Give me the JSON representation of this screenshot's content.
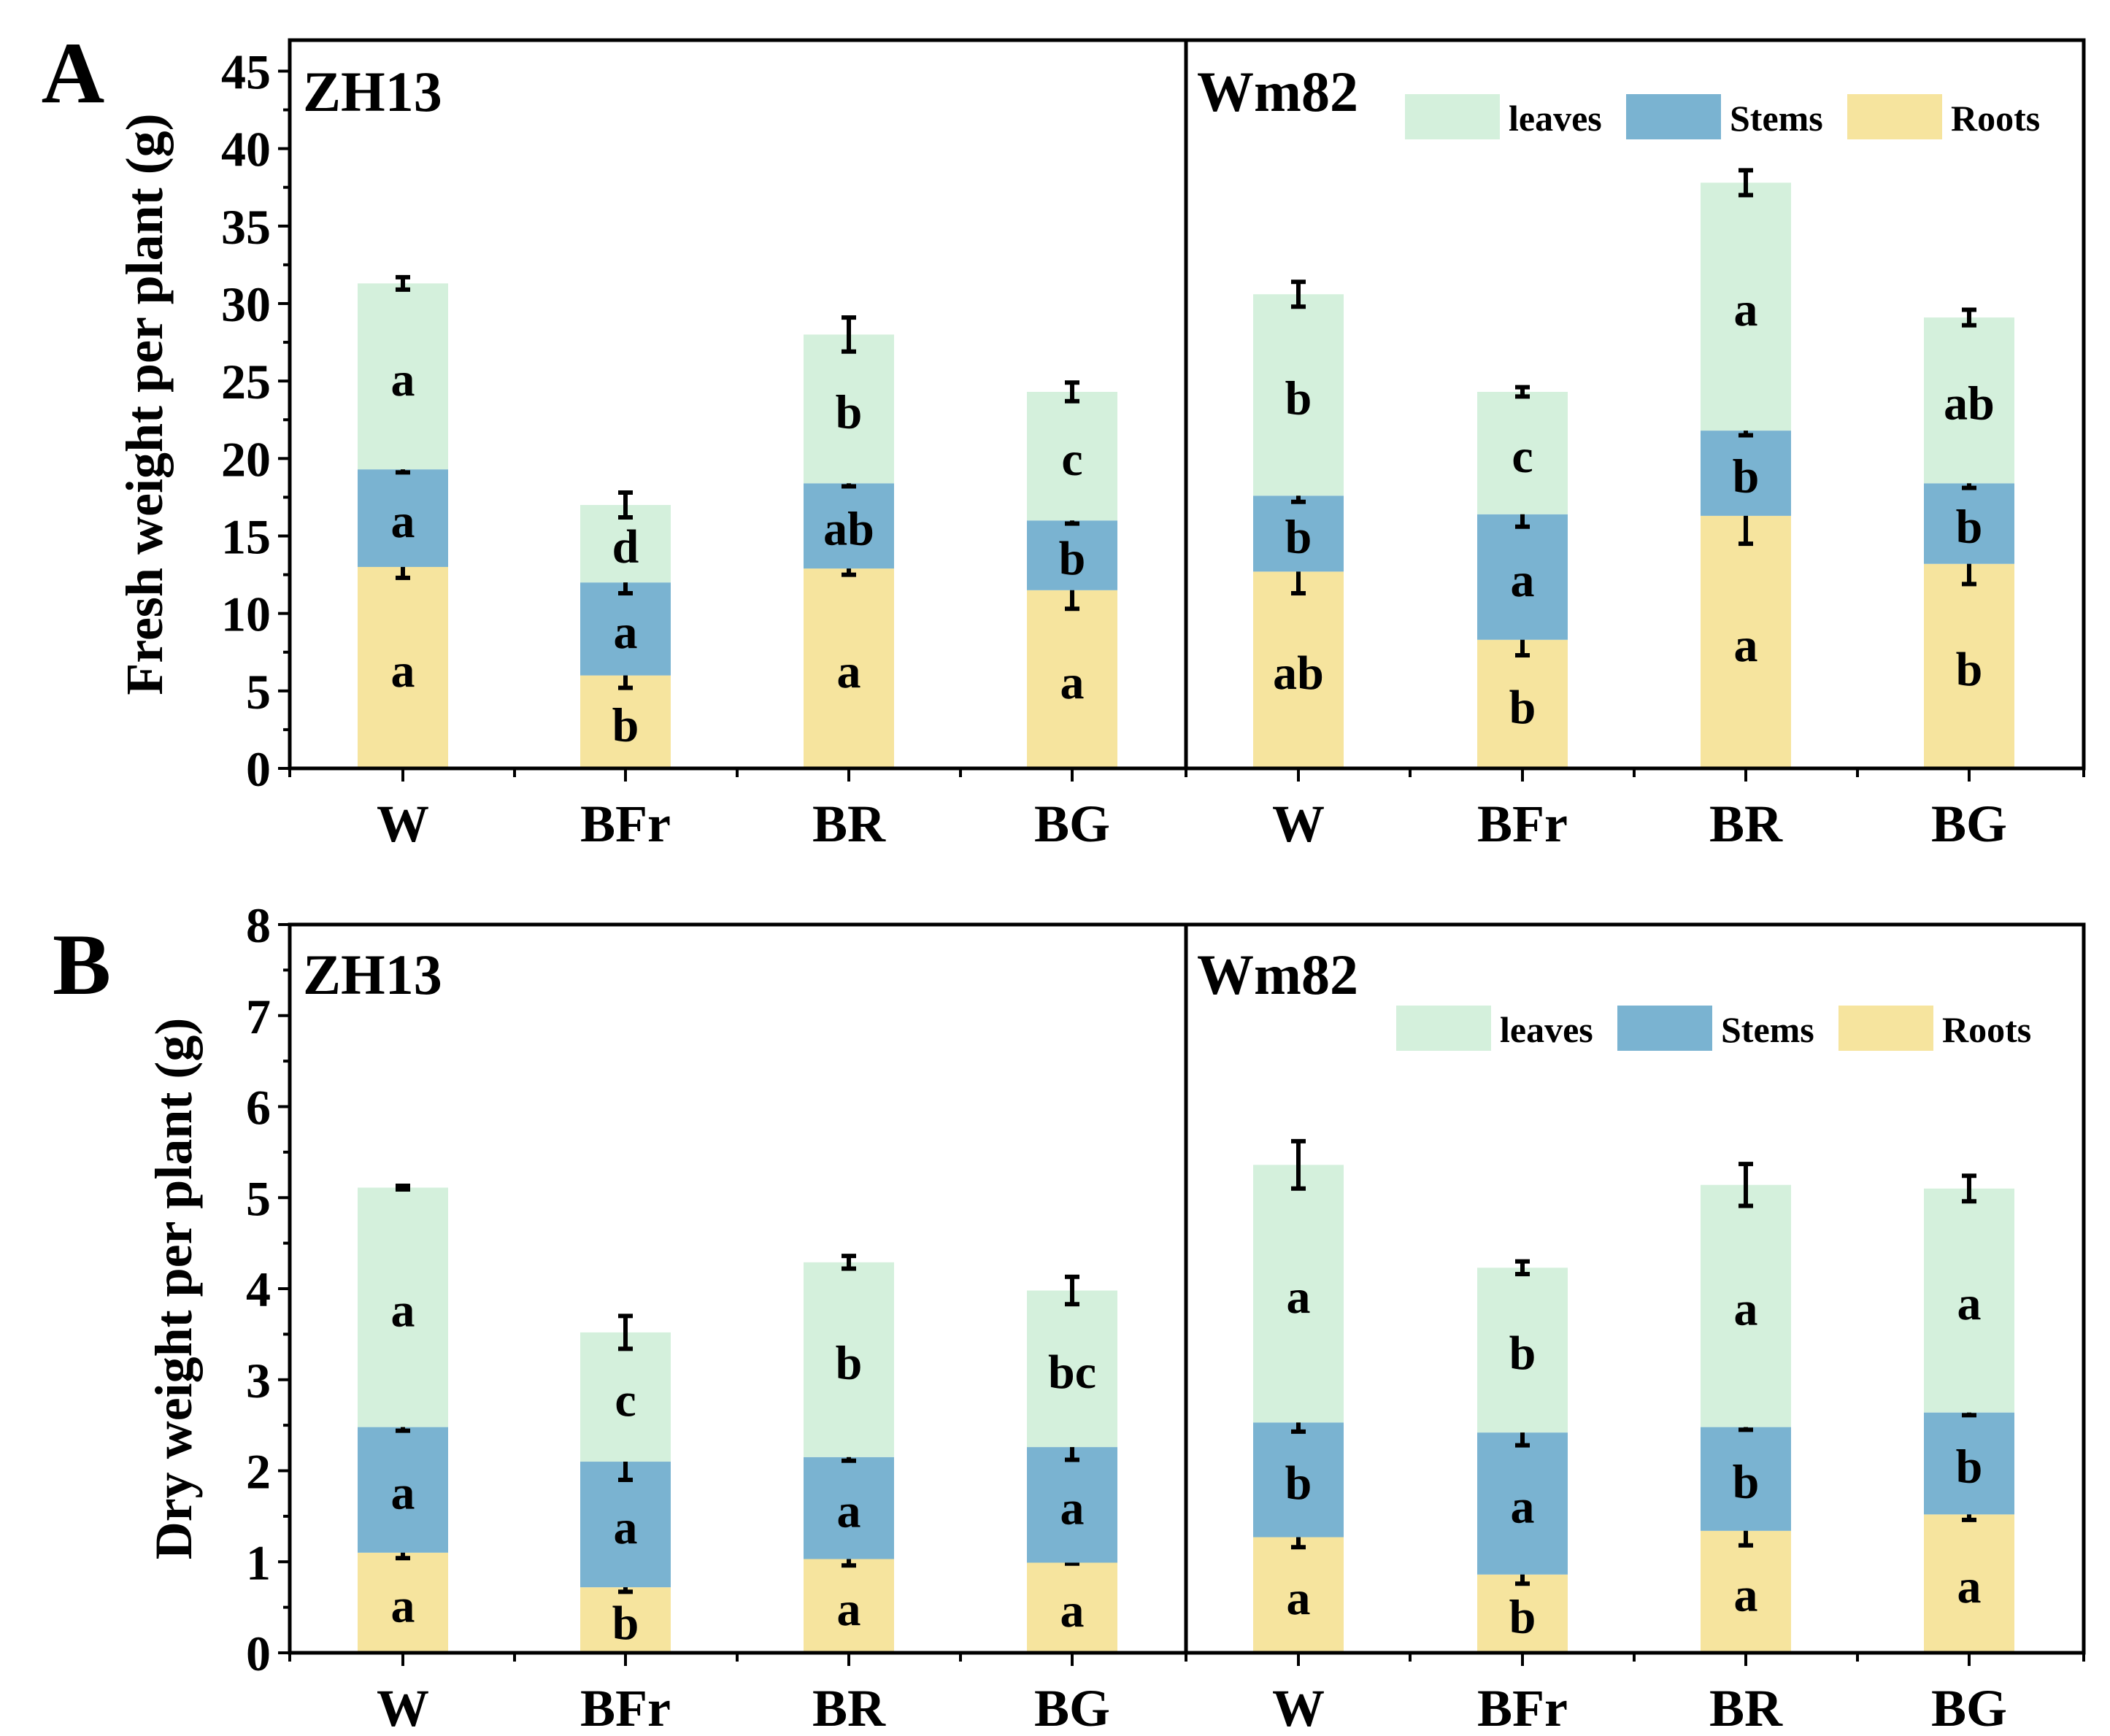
{
  "chart_data": [
    {
      "type": "bar",
      "stacked": true,
      "panel_label": "A",
      "ylabel": "Fresh weight per plant (g)",
      "ylim": [
        0,
        47
      ],
      "yticks": [
        "0",
        "5",
        "10",
        "15",
        "20",
        "25",
        "30",
        "35",
        "40",
        "45"
      ],
      "ytick_values": [
        0,
        5,
        10,
        15,
        20,
        25,
        30,
        35,
        40,
        45
      ],
      "groups": [
        {
          "name": "ZH13",
          "categories": [
            "W",
            "BFr",
            "BR",
            "BG"
          ],
          "series": [
            {
              "name": "Roots",
              "values": [
                13.0,
                6.0,
                12.9,
                11.5
              ],
              "errors": [
                0.7,
                0.8,
                0.4,
                1.2
              ],
              "letters": [
                "a",
                "b",
                "a",
                "a"
              ]
            },
            {
              "name": "Stems",
              "values": [
                6.3,
                6.0,
                5.5,
                4.5
              ],
              "errors": [
                0.2,
                0.7,
                0.2,
                0.2
              ],
              "letters": [
                "a",
                "a",
                "ab",
                "b"
              ]
            },
            {
              "name": "leaves",
              "values": [
                12.0,
                5.0,
                9.6,
                8.3
              ],
              "errors": [
                0.4,
                0.8,
                1.1,
                0.6
              ],
              "letters": [
                "a",
                "d",
                "b",
                "c"
              ]
            }
          ]
        },
        {
          "name": "Wm82",
          "categories": [
            "W",
            "BFr",
            "BR",
            "BG"
          ],
          "series": [
            {
              "name": "Roots",
              "values": [
                12.7,
                8.3,
                16.3,
                13.2
              ],
              "errors": [
                1.4,
                1.0,
                1.8,
                1.3
              ],
              "letters": [
                "ab",
                "b",
                "a",
                "b"
              ]
            },
            {
              "name": "Stems",
              "values": [
                4.9,
                8.1,
                5.5,
                5.2
              ],
              "errors": [
                0.4,
                0.8,
                0.3,
                0.3
              ],
              "letters": [
                "b",
                "a",
                "b",
                "b"
              ]
            },
            {
              "name": "leaves",
              "values": [
                13.0,
                7.9,
                16.0,
                10.7
              ],
              "errors": [
                0.8,
                0.3,
                0.8,
                0.5
              ],
              "letters": [
                "b",
                "c",
                "a",
                "ab"
              ]
            }
          ]
        }
      ],
      "legend": [
        "leaves",
        "Stems",
        "Roots"
      ],
      "legend_position": "top-right"
    },
    {
      "type": "bar",
      "stacked": true,
      "panel_label": "B",
      "ylabel": "Dry weight per plant (g)",
      "ylim": [
        0,
        8
      ],
      "yticks": [
        "0",
        "1",
        "2",
        "3",
        "4",
        "5",
        "6",
        "7",
        "8"
      ],
      "ytick_values": [
        0,
        1,
        2,
        3,
        4,
        5,
        6,
        7,
        8
      ],
      "groups": [
        {
          "name": "ZH13",
          "categories": [
            "W",
            "BFr",
            "BR",
            "BG"
          ],
          "series": [
            {
              "name": "Roots",
              "values": [
                1.1,
                0.72,
                1.03,
                0.99
              ],
              "errors": [
                0.06,
                0.05,
                0.07,
                0.01
              ],
              "letters": [
                "a",
                "b",
                "a",
                "a"
              ]
            },
            {
              "name": "Stems",
              "values": [
                1.38,
                1.38,
                1.12,
                1.27
              ],
              "errors": [
                0.04,
                0.2,
                0.04,
                0.14
              ],
              "letters": [
                "a",
                "a",
                "a",
                "a"
              ]
            },
            {
              "name": "leaves",
              "values": [
                2.63,
                1.42,
                2.14,
                1.72
              ],
              "errors": [
                0.02,
                0.18,
                0.07,
                0.15
              ],
              "letters": [
                "a",
                "c",
                "b",
                "bc"
              ]
            }
          ]
        },
        {
          "name": "Wm82",
          "categories": [
            "W",
            "BFr",
            "BR",
            "BG"
          ],
          "series": [
            {
              "name": "Roots",
              "values": [
                1.27,
                0.86,
                1.34,
                1.52
              ],
              "errors": [
                0.11,
                0.1,
                0.16,
                0.06
              ],
              "letters": [
                "a",
                "b",
                "a",
                "a"
              ]
            },
            {
              "name": "Stems",
              "values": [
                1.26,
                1.56,
                1.14,
                1.12
              ],
              "errors": [
                0.1,
                0.14,
                0.03,
                0.03
              ],
              "letters": [
                "b",
                "a",
                "b",
                "b"
              ]
            },
            {
              "name": "leaves",
              "values": [
                2.83,
                1.81,
                2.66,
                2.46
              ],
              "errors": [
                0.26,
                0.07,
                0.23,
                0.14
              ],
              "letters": [
                "a",
                "b",
                "a",
                "a"
              ]
            }
          ]
        }
      ],
      "legend": [
        "leaves",
        "Stems",
        "Roots"
      ],
      "legend_position": "top-right"
    }
  ],
  "colors": {
    "leaves": "#d4f0dc",
    "Stems": "#7ab3d1",
    "Roots": "#f6e49e"
  }
}
